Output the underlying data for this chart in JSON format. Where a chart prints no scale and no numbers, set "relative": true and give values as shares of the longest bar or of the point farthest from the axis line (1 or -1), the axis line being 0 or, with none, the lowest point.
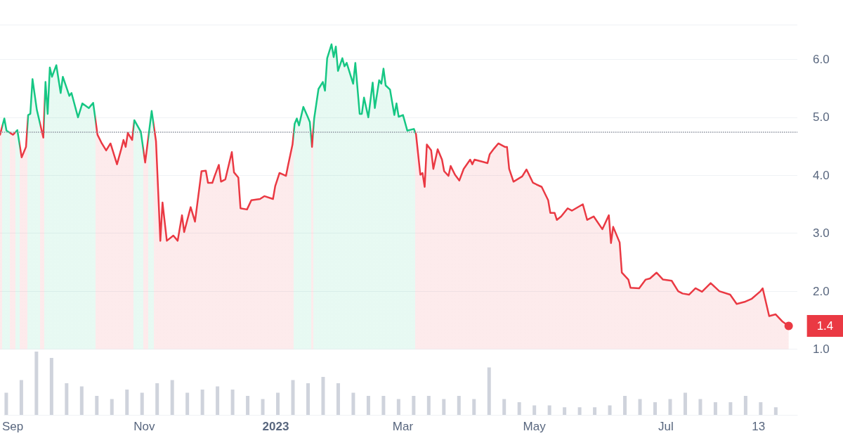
{
  "chart_data": [
    {
      "type": "area",
      "marker": "none",
      "grid": "y",
      "tick_labels": "y",
      "x": [
        "2022-08-28",
        "2022-08-30",
        "2022-08-31",
        "2022-09-03",
        "2022-09-05",
        "2022-09-07",
        "2022-09-09",
        "2022-09-10",
        "2022-09-11",
        "2022-09-12",
        "2022-09-14",
        "2022-09-17",
        "2022-09-18",
        "2022-09-19",
        "2022-09-20",
        "2022-09-21",
        "2022-09-23",
        "2022-09-25",
        "2022-09-26",
        "2022-09-29",
        "2022-09-30",
        "2022-10-03",
        "2022-10-05",
        "2022-10-08",
        "2022-10-10",
        "2022-10-12",
        "2022-10-14",
        "2022-10-16",
        "2022-10-18",
        "2022-10-21",
        "2022-10-23",
        "2022-10-24",
        "2022-10-25",
        "2022-10-26",
        "2022-10-28",
        "2022-10-29",
        "2022-11-01",
        "2022-11-03",
        "2022-11-06",
        "2022-11-08",
        "2022-11-10",
        "2022-11-11",
        "2022-11-13",
        "2022-11-16",
        "2022-11-18",
        "2022-11-20",
        "2022-11-21",
        "2022-11-24",
        "2022-11-26",
        "2022-11-29",
        "2022-12-01",
        "2022-12-02",
        "2022-12-04",
        "2022-12-05",
        "2022-12-07",
        "2022-12-08",
        "2022-12-10",
        "2022-12-13",
        "2022-12-14",
        "2022-12-16",
        "2022-12-17",
        "2022-12-20",
        "2022-12-22",
        "2022-12-26",
        "2022-12-28",
        "2023-01-01",
        "2023-01-02",
        "2023-01-04",
        "2023-01-07",
        "2023-01-08",
        "2023-01-10",
        "2023-01-11",
        "2023-01-12",
        "2023-01-13",
        "2023-01-15",
        "2023-01-17",
        "2023-01-18",
        "2023-01-19",
        "2023-01-20",
        "2023-01-22",
        "2023-01-24",
        "2023-01-25",
        "2023-01-26",
        "2023-01-28",
        "2023-01-29",
        "2023-01-30",
        "2023-01-31",
        "2023-02-02",
        "2023-02-03",
        "2023-02-04",
        "2023-02-07",
        "2023-02-08",
        "2023-02-10",
        "2023-02-11",
        "2023-02-12",
        "2023-02-14",
        "2023-02-16",
        "2023-02-17",
        "2023-02-19",
        "2023-02-20",
        "2023-02-21",
        "2023-02-22",
        "2023-02-24",
        "2023-02-26",
        "2023-02-27",
        "2023-02-28",
        "2023-03-02",
        "2023-03-04",
        "2023-03-07",
        "2023-03-08",
        "2023-03-10",
        "2023-03-11",
        "2023-03-12",
        "2023-03-13",
        "2023-03-15",
        "2023-03-16",
        "2023-03-18",
        "2023-03-20",
        "2023-03-21",
        "2023-03-23",
        "2023-03-24",
        "2023-03-26",
        "2023-03-28",
        "2023-03-30",
        "2023-04-02",
        "2023-04-03",
        "2023-04-04",
        "2023-04-08",
        "2023-04-10",
        "2023-04-11",
        "2023-04-13",
        "2023-04-15",
        "2023-04-18",
        "2023-04-19",
        "2023-04-20",
        "2023-04-22",
        "2023-04-26",
        "2023-04-28",
        "2023-05-01",
        "2023-05-05",
        "2023-05-08",
        "2023-05-09",
        "2023-05-11",
        "2023-05-12",
        "2023-05-14",
        "2023-05-17",
        "2023-05-19",
        "2023-05-24",
        "2023-05-26",
        "2023-05-29",
        "2023-06-02",
        "2023-06-05",
        "2023-06-06",
        "2023-06-07",
        "2023-06-10",
        "2023-06-11",
        "2023-06-14",
        "2023-06-15",
        "2023-06-19",
        "2023-06-22",
        "2023-06-24",
        "2023-06-27",
        "2023-06-30",
        "2023-07-04",
        "2023-07-07",
        "2023-07-09",
        "2023-07-12",
        "2023-07-15",
        "2023-07-18",
        "2023-07-22",
        "2023-07-26",
        "2023-07-31",
        "2023-08-03",
        "2023-08-07",
        "2023-08-10",
        "2023-08-14",
        "2023-08-15",
        "2023-08-18",
        "2023-08-21",
        "2023-08-24",
        "2023-08-27"
      ],
      "values": [
        4.7,
        4.98,
        4.77,
        4.7,
        4.78,
        4.31,
        4.49,
        5.04,
        5.06,
        5.66,
        5.13,
        4.65,
        5.61,
        5.06,
        5.86,
        5.7,
        5.9,
        5.42,
        5.7,
        5.37,
        5.42,
        5.0,
        5.24,
        5.16,
        5.25,
        4.7,
        4.55,
        4.43,
        4.55,
        4.19,
        4.46,
        4.61,
        4.49,
        4.73,
        4.61,
        4.95,
        4.75,
        4.22,
        5.11,
        4.59,
        2.87,
        3.53,
        2.87,
        2.96,
        2.87,
        3.31,
        3.02,
        3.45,
        3.2,
        4.07,
        4.08,
        3.87,
        3.87,
        3.98,
        4.18,
        3.89,
        3.93,
        4.4,
        4.05,
        3.96,
        3.43,
        3.41,
        3.57,
        3.59,
        3.64,
        3.59,
        3.81,
        4.04,
        3.99,
        4.18,
        4.53,
        4.89,
        4.98,
        4.86,
        5.18,
        5.01,
        4.92,
        4.49,
        4.98,
        5.49,
        5.61,
        5.46,
        6.02,
        6.26,
        6.04,
        6.22,
        5.8,
        6.02,
        5.88,
        5.94,
        5.58,
        5.94,
        5.06,
        5.06,
        5.34,
        5.0,
        5.6,
        5.16,
        5.64,
        5.58,
        5.84,
        5.55,
        5.48,
        5.04,
        5.24,
        5.01,
        5.04,
        4.77,
        4.8,
        4.71,
        4.01,
        4.04,
        3.8,
        4.53,
        4.43,
        4.11,
        4.45,
        4.27,
        4.07,
        3.99,
        4.16,
        4.01,
        3.91,
        4.11,
        4.27,
        4.19,
        4.27,
        4.23,
        4.21,
        4.36,
        4.46,
        4.55,
        4.49,
        4.49,
        4.11,
        3.89,
        3.98,
        4.1,
        3.87,
        3.8,
        3.57,
        3.35,
        3.35,
        3.23,
        3.29,
        3.43,
        3.39,
        3.5,
        3.23,
        3.29,
        3.07,
        3.31,
        2.83,
        3.11,
        2.84,
        2.32,
        2.2,
        2.06,
        2.05,
        2.2,
        2.22,
        2.32,
        2.2,
        2.18,
        2.0,
        1.96,
        1.94,
        2.05,
        1.99,
        2.14,
        2.0,
        1.94,
        1.78,
        1.82,
        1.87,
        2.0,
        2.05,
        1.57,
        1.6,
        1.48,
        1.4
      ],
      "colors": [
        "#ea3943",
        "#16c784",
        "#16c784",
        "#ea3943",
        "#16c784",
        "#ea3943",
        "#ea3943",
        "#16c784",
        "#16c784",
        "#16c784",
        "#16c784",
        "#ea3943",
        "#16c784",
        "#16c784",
        "#16c784",
        "#16c784",
        "#16c784",
        "#16c784",
        "#16c784",
        "#16c784",
        "#16c784",
        "#16c784",
        "#16c784",
        "#16c784",
        "#16c784",
        "#ea3943",
        "#ea3943",
        "#ea3943",
        "#ea3943",
        "#ea3943",
        "#ea3943",
        "#ea3943",
        "#ea3943",
        "#ea3943",
        "#ea3943",
        "#16c784",
        "#16c784",
        "#ea3943",
        "#16c784",
        "#ea3943",
        "#ea3943",
        "#ea3943",
        "#ea3943",
        "#ea3943",
        "#ea3943",
        "#ea3943",
        "#ea3943",
        "#ea3943",
        "#ea3943",
        "#ea3943",
        "#ea3943",
        "#ea3943",
        "#ea3943",
        "#ea3943",
        "#ea3943",
        "#ea3943",
        "#ea3943",
        "#ea3943",
        "#ea3943",
        "#ea3943",
        "#ea3943",
        "#ea3943",
        "#ea3943",
        "#ea3943",
        "#ea3943",
        "#ea3943",
        "#ea3943",
        "#ea3943",
        "#ea3943",
        "#ea3943",
        "#ea3943",
        "#16c784",
        "#16c784",
        "#16c784",
        "#16c784",
        "#16c784",
        "#16c784",
        "#ea3943",
        "#16c784",
        "#16c784",
        "#16c784",
        "#16c784",
        "#16c784",
        "#16c784",
        "#16c784",
        "#16c784",
        "#16c784",
        "#16c784",
        "#16c784",
        "#16c784",
        "#16c784",
        "#16c784",
        "#16c784",
        "#16c784",
        "#16c784",
        "#16c784",
        "#16c784",
        "#16c784",
        "#16c784",
        "#16c784",
        "#16c784",
        "#16c784",
        "#16c784",
        "#16c784",
        "#16c784",
        "#16c784",
        "#16c784",
        "#16c784",
        "#16c784",
        "#ea3943",
        "#ea3943",
        "#ea3943",
        "#ea3943",
        "#ea3943",
        "#ea3943",
        "#ea3943",
        "#ea3943",
        "#ea3943",
        "#ea3943",
        "#ea3943",
        "#ea3943",
        "#ea3943",
        "#ea3943",
        "#ea3943",
        "#ea3943",
        "#ea3943",
        "#ea3943",
        "#ea3943",
        "#ea3943",
        "#ea3943",
        "#ea3943",
        "#ea3943",
        "#ea3943",
        "#ea3943",
        "#ea3943",
        "#ea3943",
        "#ea3943",
        "#ea3943",
        "#ea3943",
        "#ea3943",
        "#ea3943",
        "#ea3943",
        "#ea3943",
        "#ea3943",
        "#ea3943",
        "#ea3943",
        "#ea3943",
        "#ea3943",
        "#ea3943",
        "#ea3943",
        "#ea3943",
        "#ea3943",
        "#ea3943",
        "#ea3943",
        "#ea3943",
        "#ea3943",
        "#ea3943",
        "#ea3943",
        "#ea3943",
        "#ea3943",
        "#ea3943",
        "#ea3943",
        "#ea3943",
        "#ea3943",
        "#ea3943",
        "#ea3943",
        "#ea3943",
        "#ea3943",
        "#ea3943",
        "#ea3943",
        "#ea3943",
        "#ea3943",
        "#ea3943",
        "#ea3943",
        "#ea3943",
        "#ea3943",
        "#ea3943",
        "#ea3943",
        "#ea3943",
        "#ea3943",
        "#ea3943"
      ],
      "ref_lines": [
        {
          "axis": "y",
          "value": 4.75,
          "color": "#8a919e",
          "line_style": "dotted"
        }
      ],
      "annotations": [
        {
          "text": "1.4",
          "x": "2023-08-27",
          "y": 1.4
        }
      ],
      "xlim": [
        "2022-08-28",
        "2023-08-31"
      ],
      "ylim": [
        1,
        6.6
      ],
      "yticks": [
        {
          "value": 1,
          "label": "1.0"
        },
        {
          "value": 2,
          "label": "2.0"
        },
        {
          "value": 3,
          "label": "3.0"
        },
        {
          "value": 4,
          "label": "4.0"
        },
        {
          "value": 5,
          "label": "5.0"
        },
        {
          "value": 6,
          "label": "6.0"
        }
      ]
    },
    {
      "type": "bar",
      "relative": true,
      "tick_labels": "x",
      "color": "#cfd3dc",
      "x": [
        "2022-08-29",
        "2022-09-05",
        "2022-09-12",
        "2022-09-19",
        "2022-09-26",
        "2022-10-03",
        "2022-10-10",
        "2022-10-17",
        "2022-10-24",
        "2022-10-31",
        "2022-11-07",
        "2022-11-14",
        "2022-11-21",
        "2022-11-28",
        "2022-12-05",
        "2022-12-12",
        "2022-12-19",
        "2022-12-26",
        "2023-01-02",
        "2023-01-09",
        "2023-01-16",
        "2023-01-23",
        "2023-01-30",
        "2023-02-06",
        "2023-02-13",
        "2023-02-20",
        "2023-02-27",
        "2023-03-06",
        "2023-03-13",
        "2023-03-20",
        "2023-03-27",
        "2023-04-03",
        "2023-04-10",
        "2023-04-17",
        "2023-04-24",
        "2023-05-01",
        "2023-05-08",
        "2023-05-15",
        "2023-05-22",
        "2023-05-29",
        "2023-06-05",
        "2023-06-12",
        "2023-06-19",
        "2023-06-26",
        "2023-07-03",
        "2023-07-10",
        "2023-07-17",
        "2023-07-24",
        "2023-07-31",
        "2023-08-07",
        "2023-08-14",
        "2023-08-21"
      ],
      "values": [
        0.35,
        0.55,
        1,
        0.9,
        0.5,
        0.45,
        0.3,
        0.25,
        0.4,
        0.35,
        0.5,
        0.55,
        0.35,
        0.4,
        0.45,
        0.4,
        0.3,
        0.25,
        0.35,
        0.55,
        0.5,
        0.6,
        0.5,
        0.35,
        0.3,
        0.3,
        0.25,
        0.3,
        0.3,
        0.25,
        0.3,
        0.25,
        0.75,
        0.25,
        0.2,
        0.15,
        0.15,
        0.12,
        0.12,
        0.12,
        0.15,
        0.3,
        0.25,
        0.2,
        0.25,
        0.35,
        0.25,
        0.2,
        0.2,
        0.3,
        0.2,
        0.12
      ],
      "xlim": [
        "2022-08-28",
        "2023-08-31"
      ],
      "xticks": [
        {
          "value": "2022-09-01",
          "label": "Sep"
        },
        {
          "value": "2022-11-01",
          "label": "Nov"
        },
        {
          "value": "2023-01-01",
          "label": "2023"
        },
        {
          "value": "2023-03-01",
          "label": "Mar"
        },
        {
          "value": "2023-05-01",
          "label": "May"
        },
        {
          "value": "2023-07-01",
          "label": "Jul"
        },
        {
          "value": "2023-08-13",
          "label": "13"
        }
      ]
    }
  ]
}
